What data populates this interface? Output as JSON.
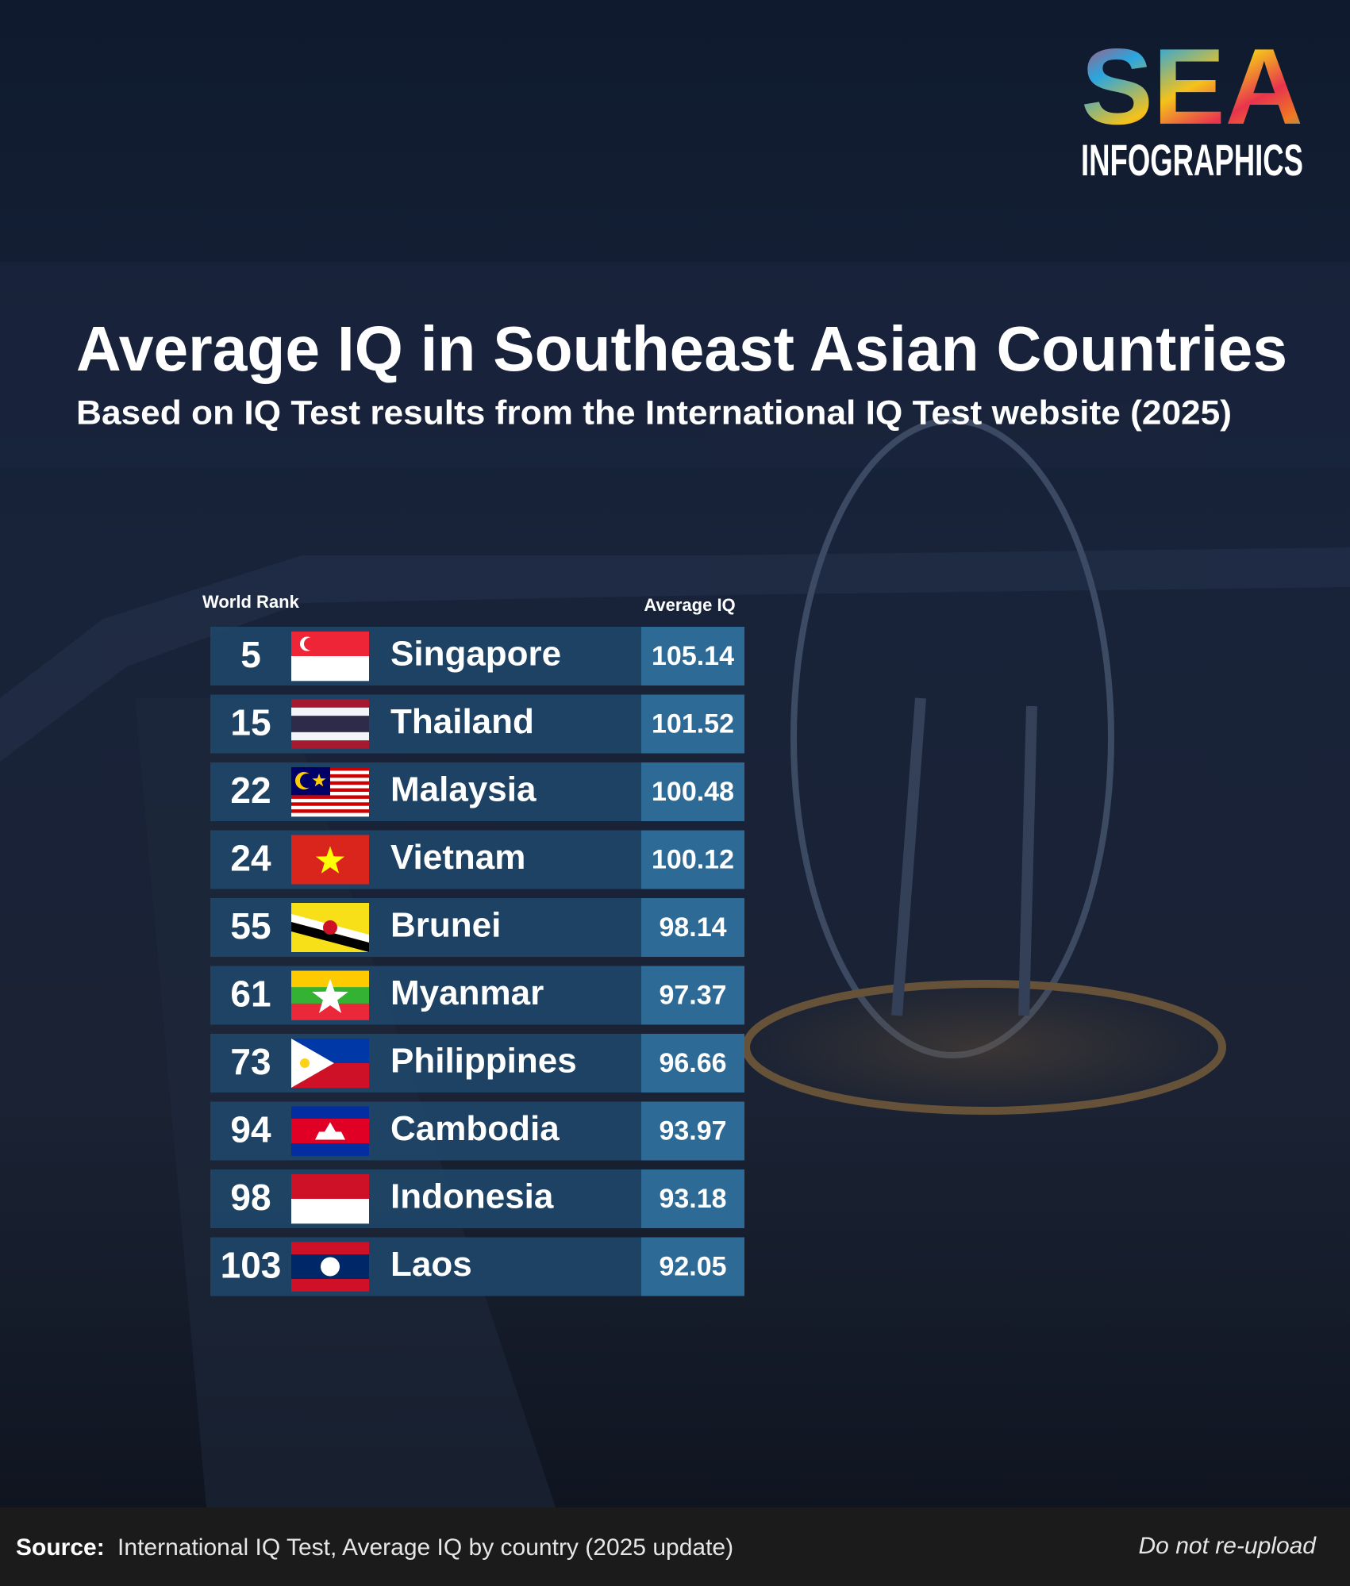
{
  "brand": {
    "logo": "SEA",
    "subtitle": "INFOGRAPHICS"
  },
  "title": "Average IQ in Southeast Asian Countries",
  "subtitle": "Based on IQ Test results from the International IQ Test website (2025)",
  "table": {
    "headers": [
      "World Rank",
      "Average IQ"
    ],
    "rows": [
      [
        5,
        "Singapore",
        105.14
      ],
      [
        15,
        "Thailand",
        101.52
      ],
      [
        22,
        "Malaysia",
        100.48
      ],
      [
        24,
        "Vietnam",
        100.12
      ],
      [
        55,
        "Brunei",
        98.14
      ],
      [
        61,
        "Myanmar",
        97.37
      ],
      [
        73,
        "Philippines",
        96.66
      ],
      [
        94,
        "Cambodia",
        93.97
      ],
      [
        98,
        "Indonesia",
        93.18
      ],
      [
        103,
        "Laos",
        92.05
      ]
    ]
  },
  "footer": {
    "source_label": "Source:",
    "source_text": "International IQ Test, Average IQ by country (2025 update)",
    "notice": "Do not re-upload"
  }
}
